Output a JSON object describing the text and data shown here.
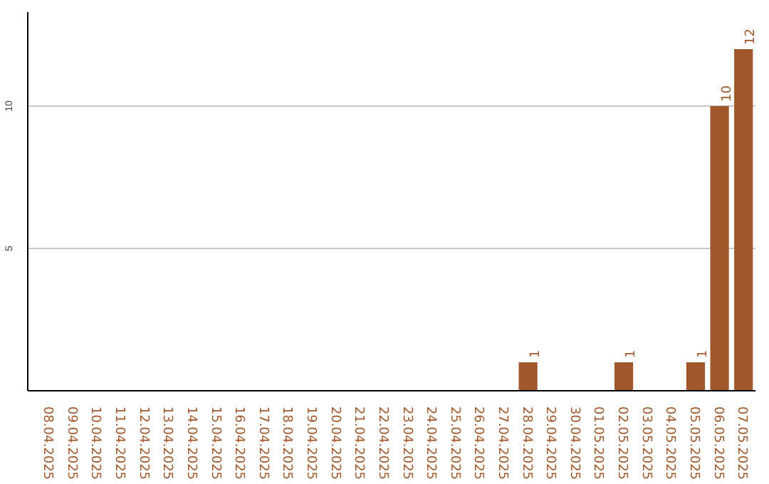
{
  "chart_data": {
    "type": "bar",
    "categories": [
      "08.04.2025",
      "09.04.2025",
      "10.04.2025",
      "11.04.2025",
      "12.04.2025",
      "13.04.2025",
      "14.04.2025",
      "15.04.2025",
      "16.04.2025",
      "17.04.2025",
      "18.04.2025",
      "19.04.2025",
      "20.04.2025",
      "21.04.2025",
      "22.04.2025",
      "23.04.2025",
      "24.04.2025",
      "25.04.2025",
      "26.04.2025",
      "27.04.2025",
      "28.04.2025",
      "29.04.2025",
      "30.04.2025",
      "01.05.2025",
      "02.05.2025",
      "03.05.2025",
      "04.05.2025",
      "05.05.2025",
      "06.05.2025",
      "07.05.2025"
    ],
    "values": [
      null,
      null,
      null,
      null,
      null,
      null,
      null,
      null,
      null,
      null,
      null,
      null,
      null,
      null,
      null,
      null,
      null,
      null,
      null,
      null,
      1,
      null,
      null,
      null,
      1,
      null,
      null,
      1,
      10,
      12
    ],
    "color": "#a0582a",
    "data_labels": true,
    "ylim": [
      0,
      13.3
    ],
    "yticks": [
      5,
      10
    ],
    "grid": "y"
  }
}
